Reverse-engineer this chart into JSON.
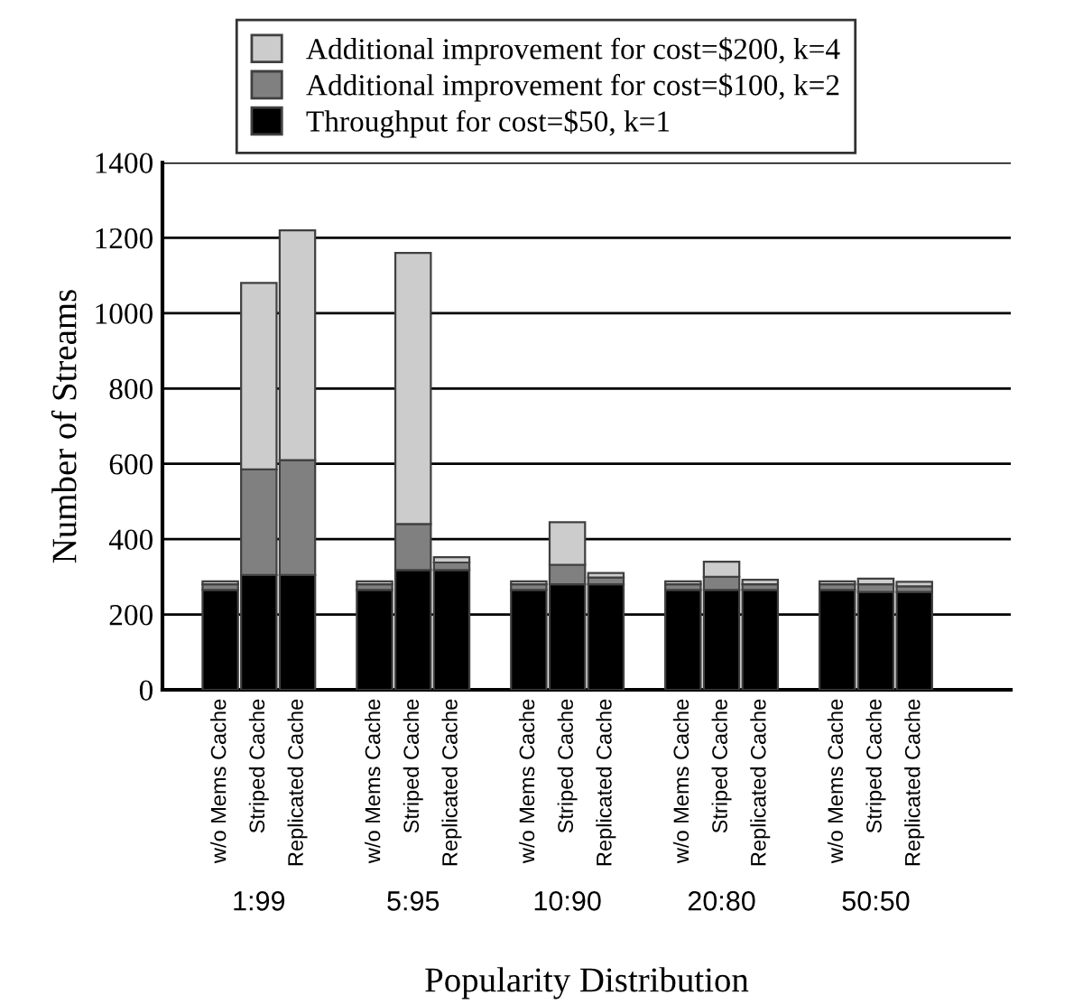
{
  "chart_data": {
    "type": "bar",
    "stacked": true,
    "xlabel": "Popularity Distribution",
    "ylabel": "Number of Streams",
    "categories": [
      null,
      "w/o Mems Cache",
      "Striped Cache",
      "Replicated Cache",
      null,
      "w/o Mems Cache",
      "Striped Cache",
      "Replicated Cache",
      null,
      "w/o Mems Cache",
      "Striped Cache",
      "Replicated Cache",
      null,
      "w/o Mems Cache",
      "Striped Cache",
      "Replicated Cache",
      null,
      "w/o Mems Cache",
      "Striped Cache",
      "Replicated Cache",
      null,
      null
    ],
    "series": [
      {
        "name": "Throughput for cost=$50, k=1",
        "color": "#000000",
        "values": [
          null,
          265,
          305,
          305,
          null,
          265,
          318,
          318,
          null,
          265,
          280,
          280,
          null,
          265,
          265,
          265,
          null,
          265,
          260,
          260,
          null,
          null
        ]
      },
      {
        "name": "Additional improvement for cost=$100, k=2",
        "color": "#808080",
        "values": [
          null,
          15,
          280,
          305,
          null,
          15,
          122,
          20,
          null,
          15,
          52,
          18,
          null,
          15,
          35,
          15,
          null,
          15,
          20,
          15,
          null,
          null
        ]
      },
      {
        "name": "Additional improvement for cost=$200, k=4",
        "color": "#cccccc",
        "values": [
          null,
          8,
          495,
          610,
          null,
          8,
          720,
          14,
          null,
          8,
          113,
          12,
          null,
          8,
          40,
          12,
          null,
          8,
          15,
          12,
          null,
          null
        ]
      }
    ],
    "annotations": [
      "1:99",
      "5:95",
      "10:90",
      "20:80",
      "50:50"
    ],
    "ylim": [
      0,
      1400
    ],
    "yticks": [
      0,
      200,
      400,
      600,
      800,
      1000,
      1200,
      1400
    ],
    "grid": "y",
    "legend": "top"
  }
}
